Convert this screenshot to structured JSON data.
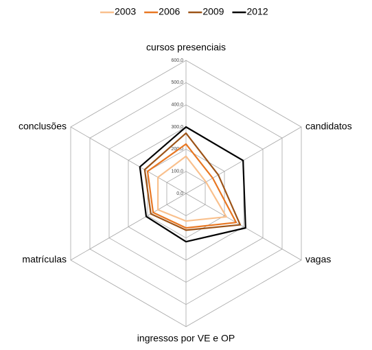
{
  "chart_data": {
    "type": "radar",
    "categories": [
      "cursos presenciais",
      "candidatos",
      "vagas",
      "ingressos por VE e OP",
      "matrículas",
      "conclusões"
    ],
    "series": [
      {
        "name": "2003",
        "color": "#f9c08d",
        "values": [
          168,
          104,
          210,
          124,
          146,
          146
        ]
      },
      {
        "name": "2006",
        "color": "#e87722",
        "values": [
          223,
          139,
          261,
          155,
          171,
          200
        ]
      },
      {
        "name": "2009",
        "color": "#9c5317",
        "values": [
          272,
          168,
          282,
          165,
          183,
          215
        ]
      },
      {
        "name": "2012",
        "color": "#000000",
        "values": [
          300,
          297,
          310,
          217,
          207,
          240
        ]
      }
    ],
    "ylim": [
      0,
      600
    ],
    "yticks": [
      {
        "value": 0,
        "label": "0,0"
      },
      {
        "value": 100,
        "label": "100,0"
      },
      {
        "value": 200,
        "label": "200,0"
      },
      {
        "value": 300,
        "label": "300,0"
      },
      {
        "value": 400,
        "label": "400,0"
      },
      {
        "value": 500,
        "label": "500,0"
      },
      {
        "value": 600,
        "label": "600,0"
      }
    ],
    "grid": true,
    "legend": "top"
  }
}
